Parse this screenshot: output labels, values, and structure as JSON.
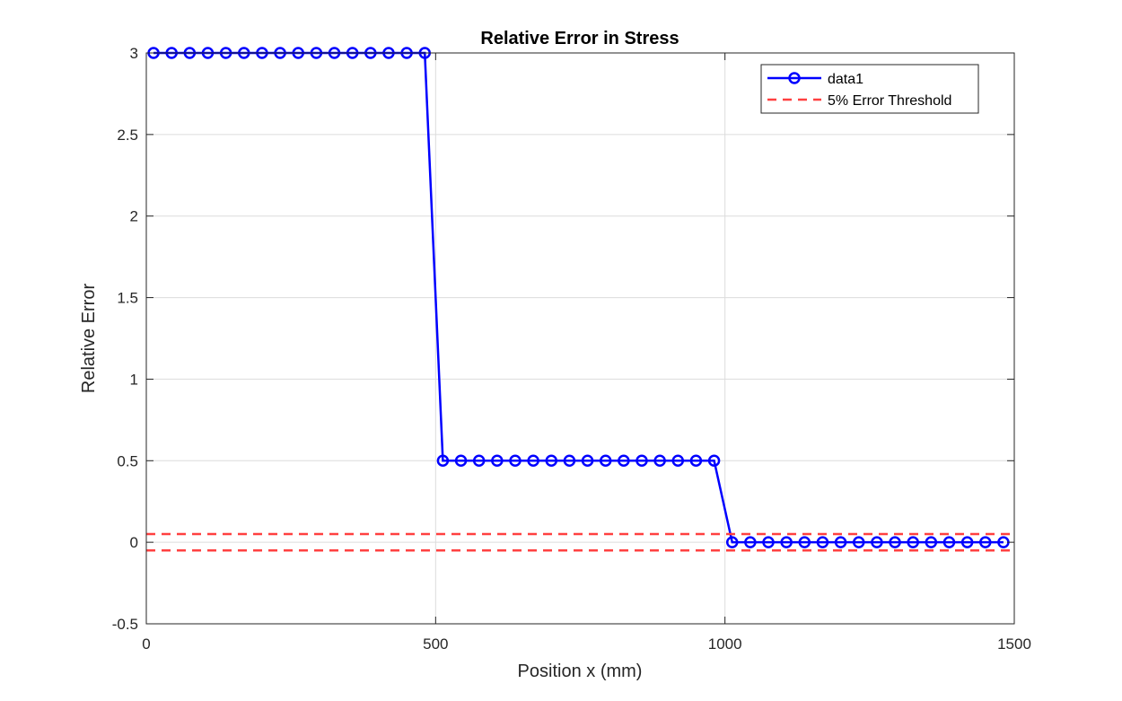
{
  "chart_data": {
    "type": "line",
    "title": "Relative Error in Stress",
    "xlabel": "Position x (mm)",
    "ylabel": "Relative Error",
    "xlim": [
      0,
      1500
    ],
    "ylim": [
      -0.5,
      3
    ],
    "xticks": [
      0,
      500,
      1000,
      1500
    ],
    "xtick_labels": [
      "0",
      "500",
      "1000",
      "1500"
    ],
    "yticks": [
      -0.5,
      0,
      0.5,
      1,
      1.5,
      2,
      2.5,
      3
    ],
    "ytick_labels": [
      "-0.5",
      "0",
      "0.5",
      "1",
      "1.5",
      "2",
      "2.5",
      "3"
    ],
    "grid": true,
    "legend_position": "top-right",
    "series": [
      {
        "name": "data1",
        "style": "solid line with circle markers",
        "color": "#0000ff",
        "x": [
          12.5,
          43.75,
          75,
          106.25,
          137.5,
          168.75,
          200,
          231.25,
          262.5,
          293.75,
          325,
          356.25,
          387.5,
          418.75,
          450,
          481.25,
          512.5,
          543.75,
          575,
          606.25,
          637.5,
          668.75,
          700,
          731.25,
          762.5,
          793.75,
          825,
          856.25,
          887.5,
          918.75,
          950,
          981.25,
          1012.5,
          1043.75,
          1075,
          1106.25,
          1137.5,
          1168.75,
          1200,
          1231.25,
          1262.5,
          1293.75,
          1325,
          1356.25,
          1387.5,
          1418.75,
          1450,
          1481.25
        ],
        "y": [
          3,
          3,
          3,
          3,
          3,
          3,
          3,
          3,
          3,
          3,
          3,
          3,
          3,
          3,
          3,
          3,
          0.5,
          0.5,
          0.5,
          0.5,
          0.5,
          0.5,
          0.5,
          0.5,
          0.5,
          0.5,
          0.5,
          0.5,
          0.5,
          0.5,
          0.5,
          0.5,
          0,
          0,
          0,
          0,
          0,
          0,
          0,
          0,
          0,
          0,
          0,
          0,
          0,
          0,
          0,
          0
        ]
      },
      {
        "name": "5% Error Threshold",
        "style": "dashed",
        "color": "#ff4040",
        "x": [
          0,
          1500
        ],
        "y": [
          0.05,
          0.05
        ]
      },
      {
        "name": "",
        "style": "dashed",
        "color": "#ff4040",
        "x": [
          0,
          1500
        ],
        "y": [
          -0.05,
          -0.05
        ]
      }
    ]
  }
}
